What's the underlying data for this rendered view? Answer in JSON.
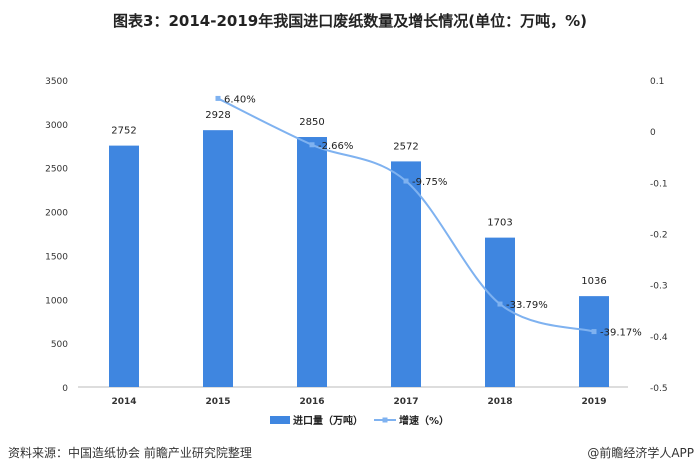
{
  "title": "图表3：2014-2019年我国进口废纸数量及增长情况(单位：万吨，%)",
  "source": "资料来源：中国造纸协会 前瞻产业研究院整理",
  "credit": "@前瞻经济学人APP",
  "chart_data": {
    "type": "bar+line",
    "categories": [
      "2014",
      "2015",
      "2016",
      "2017",
      "2018",
      "2019"
    ],
    "series": [
      {
        "name": "进口量（万吨）",
        "type": "bar",
        "axis": "left",
        "values": [
          2752,
          2928,
          2850,
          2572,
          1703,
          1036
        ],
        "labels": [
          "2752",
          "2928",
          "2850",
          "2572",
          "1703",
          "1036"
        ],
        "color": "#3f86e0"
      },
      {
        "name": "增速（%）",
        "type": "line",
        "axis": "right",
        "values": [
          null,
          0.064,
          -0.0266,
          -0.0975,
          -0.3379,
          -0.3917
        ],
        "labels": [
          "",
          "6.40%",
          "-2.66%",
          "-9.75%",
          "-33.79%",
          "-39.17%"
        ],
        "color": "#7fb2f0"
      }
    ],
    "left_axis": {
      "range": [
        0,
        3500
      ],
      "ticks": [
        "0",
        "500",
        "1000",
        "1500",
        "2000",
        "2500",
        "3000",
        "3500"
      ]
    },
    "right_axis": {
      "range": [
        -0.5,
        0.1
      ],
      "ticks": [
        "-0.5",
        "-0.4",
        "-0.3",
        "-0.2",
        "-0.1",
        "0",
        "0.1"
      ]
    },
    "legend": "bottom",
    "grid": false
  }
}
